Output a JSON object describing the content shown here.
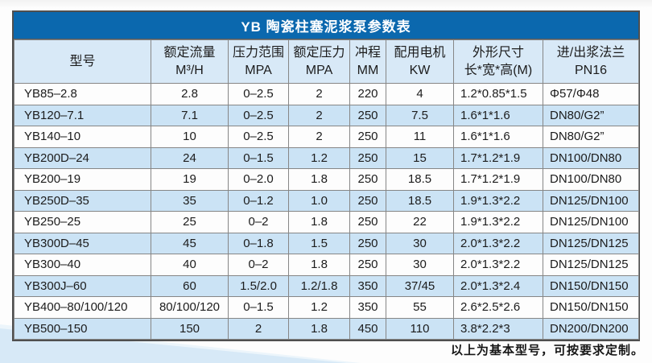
{
  "title": "YB 陶瓷柱塞泥浆泵参数表",
  "footer_note": "以上为基本型号，可按要求定制。",
  "colors": {
    "title_bar_bg": "#0b68ae",
    "title_text": "#ffffff",
    "header_row_bg": "#d8e9f7",
    "stripe_row_bg": "#cbe3f5",
    "grid_border": "#868686",
    "background_wedge": "#d7e9f7"
  },
  "table": {
    "col_keys": [
      "model",
      "rated-flow",
      "pressure-range",
      "rated-pressure",
      "stroke",
      "motor-power",
      "dimensions",
      "flange"
    ],
    "headers": [
      {
        "line1": "型号",
        "line2": ""
      },
      {
        "line1": "额定流量",
        "line2": "M³/H"
      },
      {
        "line1": "压力范围",
        "line2": "MPA"
      },
      {
        "line1": "额定压力",
        "line2": "MPA"
      },
      {
        "line1": "冲程",
        "line2": "MM"
      },
      {
        "line1": "配用电机",
        "line2": "KW"
      },
      {
        "line1": "外形尺寸",
        "line2": "长*宽*高(M)"
      },
      {
        "line1": "进/出浆法兰",
        "line2": "PN16"
      }
    ],
    "rows": [
      [
        "YB85–2.8",
        "2.8",
        "0–2.5",
        "2",
        "220",
        "4",
        "1.2*0.85*1.5",
        "Φ57/Φ48"
      ],
      [
        "YB120–7.1",
        "7.1",
        "0–2.5",
        "2",
        "250",
        "7.5",
        "1.6*1*1.6",
        "DN80/G2”"
      ],
      [
        "YB140–10",
        "10",
        "0–2.5",
        "2",
        "250",
        "11",
        "1.6*1*1.6",
        "DN80/G2”"
      ],
      [
        "YB200D–24",
        "24",
        "0–1.5",
        "1.2",
        "250",
        "15",
        "1.7*1.2*1.9",
        "DN100/DN80"
      ],
      [
        "YB200–19",
        "19",
        "0–2.0",
        "1.8",
        "250",
        "18.5",
        "1.7*1.2*1.9",
        "DN100/DN80"
      ],
      [
        "YB250D–35",
        "35",
        "0–1.2",
        "1.0",
        "250",
        "18.5",
        "1.9*1.3*2.2",
        "DN125/DN100"
      ],
      [
        "YB250–25",
        "25",
        "0–2",
        "1.8",
        "250",
        "22",
        "1.9*1.3*2.2",
        "DN125/DN100"
      ],
      [
        "YB300D–45",
        "45",
        "0–1.8",
        "1.5",
        "250",
        "30",
        "2.0*1.3*2.2",
        "DN125/DN125"
      ],
      [
        "YB300–40",
        "40",
        "0–2",
        "1.8",
        "250",
        "30",
        "2.0*1.3*2.2",
        "DN125/DN125"
      ],
      [
        "YB300J–60",
        "60",
        "1.5/2.0",
        "1.2/1.8",
        "350",
        "37/45",
        "2.0*1.3*2.4",
        "DN150/DN150"
      ],
      [
        "YB400–80/100/120",
        "80/100/120",
        "0–1.5",
        "1.2",
        "350",
        "55",
        "2.6*2.5*2.6",
        "DN150/DN150"
      ],
      [
        "YB500–150",
        "150",
        "2",
        "1.8",
        "450",
        "110",
        "3.8*2.2*3",
        "DN200/DN200"
      ]
    ]
  }
}
